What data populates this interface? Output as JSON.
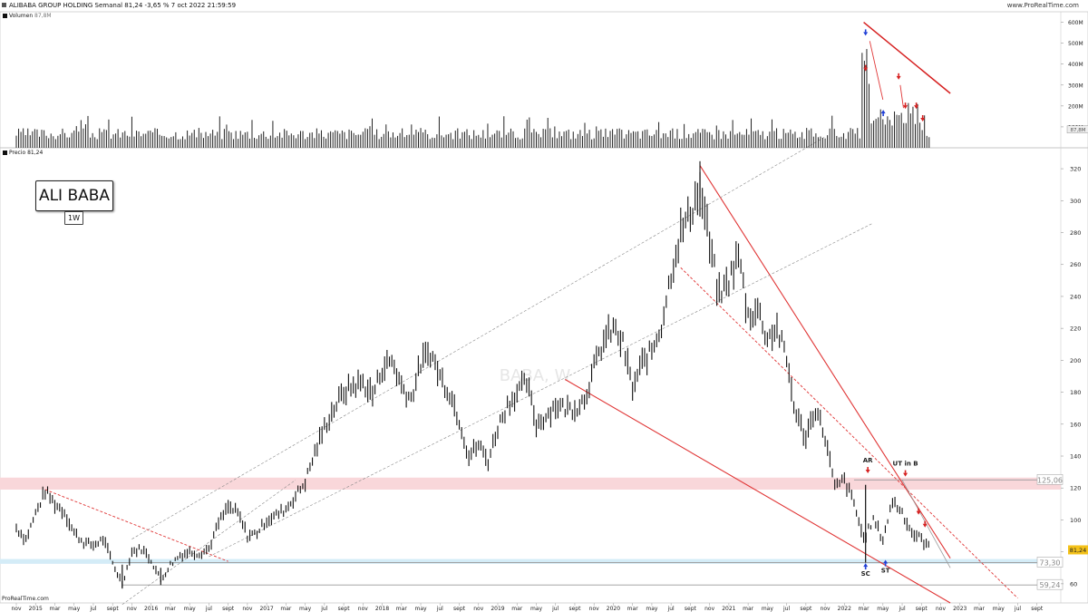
{
  "header": {
    "title": "ALIBABA GROUP HOLDING Semanal 81,24 -3,65 % 7 oct 2022 21:59:59",
    "site": "www.ProRealTime.com"
  },
  "volume_panel": {
    "label": "Volumen",
    "current_value": "87,8M"
  },
  "price_panel": {
    "label": "Precio 81,24",
    "watermark": "BABA, W"
  },
  "badges": {
    "main": "ALI BABA",
    "timeframe": "1W"
  },
  "footer": "ProRealTime.com",
  "chart_data": [
    {
      "type": "bar",
      "name": "volume",
      "y_ticks": [
        "100M",
        "200M",
        "300M",
        "400M",
        "500M",
        "600M"
      ],
      "ylim_millions": [
        0,
        650
      ],
      "current_label": "87,8M",
      "volume_weeks": [
        "2015-01",
        "2022-10"
      ],
      "arrows": [
        {
          "x": "2022-03-07",
          "dir": "down",
          "color": "#1f3fd6"
        },
        {
          "x": "2022-03-07",
          "dir": "down",
          "color": "#d62020"
        },
        {
          "x": "2022-06-20",
          "dir": "down",
          "color": "#d62020"
        },
        {
          "x": "2022-07-11",
          "dir": "down",
          "color": "#d62020"
        },
        {
          "x": "2022-05-02",
          "dir": "up",
          "color": "#1f3fd6"
        },
        {
          "x": "2022-08-15",
          "dir": "down",
          "color": "#d62020"
        },
        {
          "x": "2022-09-05",
          "dir": "down",
          "color": "#d62020"
        }
      ]
    },
    {
      "type": "line",
      "name": "price",
      "y_ticks": [
        60,
        80,
        100,
        120,
        140,
        160,
        180,
        200,
        220,
        240,
        260,
        280,
        300,
        320
      ],
      "ylim": [
        48,
        328
      ],
      "x_ticks": [
        "nov",
        "2015",
        "mar",
        "may",
        "jul",
        "sept",
        "nov",
        "2016",
        "mar",
        "may",
        "jul",
        "sept",
        "nov",
        "2017",
        "mar",
        "may",
        "jul",
        "sept",
        "nov",
        "2018",
        "mar",
        "may",
        "jul",
        "sept",
        "nov",
        "2019",
        "mar",
        "may",
        "jul",
        "sept",
        "nov",
        "2020",
        "mar",
        "may",
        "jul",
        "sept",
        "nov",
        "2021",
        "mar",
        "may",
        "jul",
        "sept",
        "nov",
        "2022",
        "mar",
        "may",
        "jul",
        "sept",
        "nov",
        "2023",
        "mar",
        "may",
        "jul",
        "sept"
      ],
      "current_price_label": "81,24",
      "levels": [
        {
          "value": 125.06,
          "label": "125,06"
        },
        {
          "value": 73.3,
          "label": "73,30"
        },
        {
          "value": 59.24,
          "label": "59,24"
        }
      ],
      "annotations": [
        {
          "text": "AR",
          "x": "2022-03-14",
          "y": 136
        },
        {
          "text": "UT in B",
          "x": "2022-07-11",
          "y": 134
        },
        {
          "text": "SC",
          "x": "2022-03-07",
          "y": 65
        },
        {
          "text": "ST",
          "x": "2022-05-09",
          "y": 67
        }
      ],
      "price_path": [
        {
          "x": "2014-11",
          "y": 95
        },
        {
          "x": "2014-12",
          "y": 88
        },
        {
          "x": "2015-01",
          "y": 104
        },
        {
          "x": "2015-02",
          "y": 118
        },
        {
          "x": "2015-03",
          "y": 110
        },
        {
          "x": "2015-04",
          "y": 105
        },
        {
          "x": "2015-05",
          "y": 92
        },
        {
          "x": "2015-06",
          "y": 86
        },
        {
          "x": "2015-07",
          "y": 84
        },
        {
          "x": "2015-08",
          "y": 88
        },
        {
          "x": "2015-09",
          "y": 73
        },
        {
          "x": "2015-10",
          "y": 60
        },
        {
          "x": "2015-11",
          "y": 80
        },
        {
          "x": "2015-12",
          "y": 82
        },
        {
          "x": "2016-01",
          "y": 75
        },
        {
          "x": "2016-02",
          "y": 62
        },
        {
          "x": "2016-03",
          "y": 72
        },
        {
          "x": "2016-04",
          "y": 78
        },
        {
          "x": "2016-05",
          "y": 80
        },
        {
          "x": "2016-06",
          "y": 79
        },
        {
          "x": "2016-07",
          "y": 82
        },
        {
          "x": "2016-08",
          "y": 98
        },
        {
          "x": "2016-09",
          "y": 108
        },
        {
          "x": "2016-10",
          "y": 104
        },
        {
          "x": "2016-11",
          "y": 90
        },
        {
          "x": "2016-12",
          "y": 92
        },
        {
          "x": "2017-01",
          "y": 100
        },
        {
          "x": "2017-02",
          "y": 103
        },
        {
          "x": "2017-03",
          "y": 107
        },
        {
          "x": "2017-04",
          "y": 115
        },
        {
          "x": "2017-05",
          "y": 124
        },
        {
          "x": "2017-06",
          "y": 142
        },
        {
          "x": "2017-07",
          "y": 158
        },
        {
          "x": "2017-08",
          "y": 170
        },
        {
          "x": "2017-09",
          "y": 180
        },
        {
          "x": "2017-10",
          "y": 184
        },
        {
          "x": "2017-11",
          "y": 186
        },
        {
          "x": "2017-12",
          "y": 178
        },
        {
          "x": "2018-01",
          "y": 195
        },
        {
          "x": "2018-02",
          "y": 200
        },
        {
          "x": "2018-03",
          "y": 184
        },
        {
          "x": "2018-04",
          "y": 176
        },
        {
          "x": "2018-05",
          "y": 198
        },
        {
          "x": "2018-06",
          "y": 205
        },
        {
          "x": "2018-07",
          "y": 190
        },
        {
          "x": "2018-08",
          "y": 180
        },
        {
          "x": "2018-09",
          "y": 163
        },
        {
          "x": "2018-10",
          "y": 140
        },
        {
          "x": "2018-11",
          "y": 147
        },
        {
          "x": "2018-12",
          "y": 137
        },
        {
          "x": "2019-01",
          "y": 158
        },
        {
          "x": "2019-02",
          "y": 172
        },
        {
          "x": "2019-03",
          "y": 180
        },
        {
          "x": "2019-04",
          "y": 186
        },
        {
          "x": "2019-05",
          "y": 160
        },
        {
          "x": "2019-06",
          "y": 165
        },
        {
          "x": "2019-07",
          "y": 172
        },
        {
          "x": "2019-08",
          "y": 170
        },
        {
          "x": "2019-09",
          "y": 170
        },
        {
          "x": "2019-10",
          "y": 176
        },
        {
          "x": "2019-11",
          "y": 195
        },
        {
          "x": "2019-12",
          "y": 212
        },
        {
          "x": "2020-01",
          "y": 220
        },
        {
          "x": "2020-02",
          "y": 210
        },
        {
          "x": "2020-03",
          "y": 182
        },
        {
          "x": "2020-04",
          "y": 198
        },
        {
          "x": "2020-05",
          "y": 206
        },
        {
          "x": "2020-06",
          "y": 222
        },
        {
          "x": "2020-07",
          "y": 255
        },
        {
          "x": "2020-08",
          "y": 280
        },
        {
          "x": "2020-09",
          "y": 292
        },
        {
          "x": "2020-10",
          "y": 310
        },
        {
          "x": "2020-11",
          "y": 272
        },
        {
          "x": "2020-12",
          "y": 240
        },
        {
          "x": "2021-01",
          "y": 250
        },
        {
          "x": "2021-02",
          "y": 266
        },
        {
          "x": "2021-03",
          "y": 228
        },
        {
          "x": "2021-04",
          "y": 232
        },
        {
          "x": "2021-05",
          "y": 214
        },
        {
          "x": "2021-06",
          "y": 220
        },
        {
          "x": "2021-07",
          "y": 200
        },
        {
          "x": "2021-08",
          "y": 165
        },
        {
          "x": "2021-09",
          "y": 152
        },
        {
          "x": "2021-10",
          "y": 170
        },
        {
          "x": "2021-11",
          "y": 152
        },
        {
          "x": "2021-12",
          "y": 120
        },
        {
          "x": "2022-01",
          "y": 125
        },
        {
          "x": "2022-02",
          "y": 110
        },
        {
          "x": "2022-03",
          "y": 88
        },
        {
          "x": "2022-04",
          "y": 100
        },
        {
          "x": "2022-05",
          "y": 88
        },
        {
          "x": "2022-06",
          "y": 112
        },
        {
          "x": "2022-07",
          "y": 105
        },
        {
          "x": "2022-08",
          "y": 92
        },
        {
          "x": "2022-09",
          "y": 88
        },
        {
          "x": "2022-10",
          "y": 81.24
        }
      ],
      "trendlines": [
        {
          "style": "dashed-red",
          "from": {
            "x": "2015-02",
            "y": 119
          },
          "to": {
            "x": "2016-09",
            "y": 74
          }
        },
        {
          "style": "solid-red",
          "from": {
            "x": "2020-10",
            "y": 322
          },
          "to": {
            "x": "2022-12",
            "y": 76
          }
        },
        {
          "style": "solid-red",
          "from": {
            "x": "2019-08",
            "y": 188
          },
          "to": {
            "x": "2022-12",
            "y": 48
          }
        },
        {
          "style": "dashed-red",
          "from": {
            "x": "2020-08",
            "y": 258
          },
          "to": {
            "x": "2023-07",
            "y": 51
          }
        },
        {
          "style": "dashed-grey",
          "from": {
            "x": "2016-07",
            "y": 77
          },
          "to": {
            "x": "2022-04",
            "y": 286
          }
        },
        {
          "style": "dashed-grey",
          "from": {
            "x": "2015-11",
            "y": 88
          },
          "to": {
            "x": "2021-11",
            "y": 340
          }
        },
        {
          "style": "dashed-grey",
          "from": {
            "x": "2015-10",
            "y": 47
          },
          "to": {
            "x": "2017-04",
            "y": 125
          }
        },
        {
          "style": "solid-grey",
          "from": {
            "x": "2022-07",
            "y": 125
          },
          "to": {
            "x": "2022-12",
            "y": 70
          }
        }
      ]
    }
  ]
}
